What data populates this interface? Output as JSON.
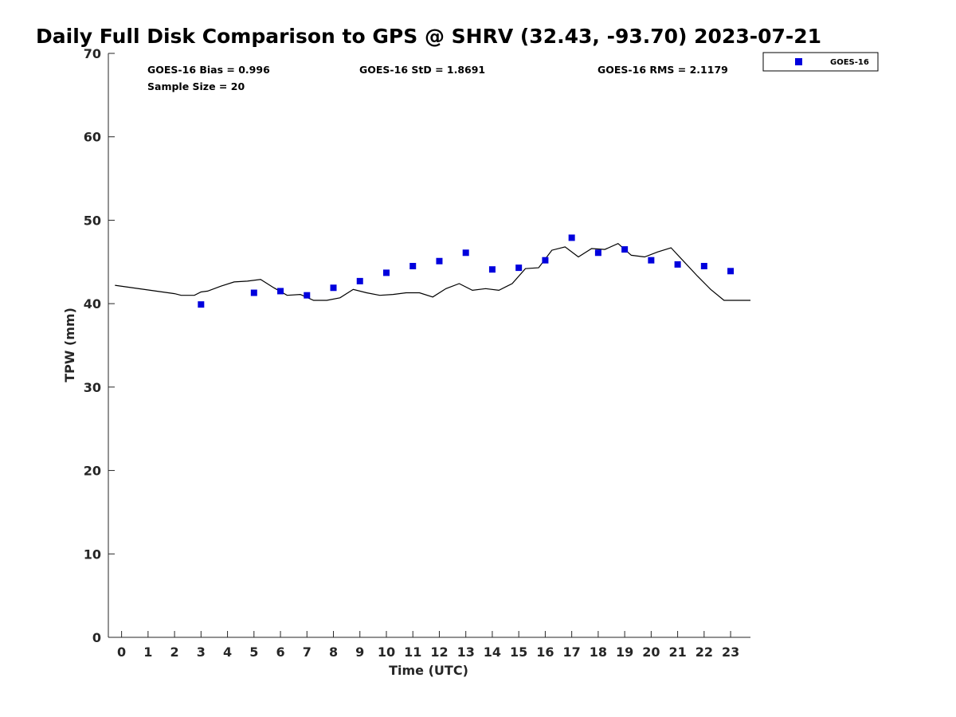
{
  "chart_data": {
    "type": "scatter",
    "title": "Daily Full Disk Comparison to GPS @ SHRV (32.43, -93.70) 2023-07-21",
    "xlabel": "Time (UTC)",
    "ylabel": "TPW (mm)",
    "xlim": [
      -0.5,
      23.75
    ],
    "ylim": [
      0,
      70
    ],
    "x_ticks": [
      0,
      1,
      2,
      3,
      4,
      5,
      6,
      7,
      8,
      9,
      10,
      11,
      12,
      13,
      14,
      15,
      16,
      17,
      18,
      19,
      20,
      21,
      22,
      23
    ],
    "y_ticks": [
      0,
      10,
      20,
      30,
      40,
      50,
      60,
      70
    ],
    "grid": false,
    "legend_position": "top-right-outside",
    "stats": [
      {
        "text": "GOES-16 Bias = 0.996"
      },
      {
        "text": "GOES-16 StD = 1.8691"
      },
      {
        "text": "GOES-16 RMS = 2.1179"
      },
      {
        "text": "Sample Size = 20"
      }
    ],
    "series": [
      {
        "name": "GOES-16",
        "type": "scatter",
        "marker": "square",
        "color": "#0000dd",
        "x": [
          3,
          5,
          6,
          7,
          8,
          9,
          10,
          11,
          12,
          13,
          14,
          15,
          16,
          17,
          18,
          19,
          20,
          21,
          22,
          23
        ],
        "y": [
          39.9,
          41.3,
          41.5,
          41.0,
          41.9,
          42.7,
          43.7,
          44.5,
          45.1,
          46.1,
          44.1,
          44.3,
          45.2,
          47.9,
          46.1,
          46.5,
          45.2,
          44.7,
          44.5,
          43.9
        ]
      },
      {
        "type": "line",
        "color": "#000000",
        "x": [
          -0.25,
          2.0,
          2.25,
          2.75,
          3.0,
          3.25,
          3.75,
          4.25,
          4.75,
          5.25,
          5.75,
          6.25,
          6.75,
          7.25,
          7.75,
          8.25,
          8.75,
          9.25,
          9.75,
          10.25,
          10.75,
          11.25,
          11.75,
          12.25,
          12.75,
          13.25,
          13.75,
          14.25,
          14.75,
          15.25,
          15.75,
          16.25,
          16.75,
          17.25,
          17.75,
          18.25,
          18.75,
          19.25,
          19.75,
          20.25,
          20.75,
          21.25,
          21.75,
          22.25,
          22.75,
          23.25,
          23.75
        ],
        "y": [
          42.2,
          41.2,
          41.0,
          41.0,
          41.4,
          41.5,
          42.1,
          42.6,
          42.7,
          42.9,
          41.9,
          41.0,
          41.1,
          40.4,
          40.4,
          40.7,
          41.7,
          41.3,
          41.0,
          41.1,
          41.3,
          41.3,
          40.8,
          41.8,
          42.4,
          41.6,
          41.8,
          41.6,
          42.4,
          44.2,
          44.3,
          46.4,
          46.8,
          45.6,
          46.6,
          46.5,
          47.2,
          45.8,
          45.6,
          46.2,
          46.7,
          45.0,
          43.3,
          41.7,
          40.4,
          40.4,
          40.4
        ]
      }
    ]
  }
}
